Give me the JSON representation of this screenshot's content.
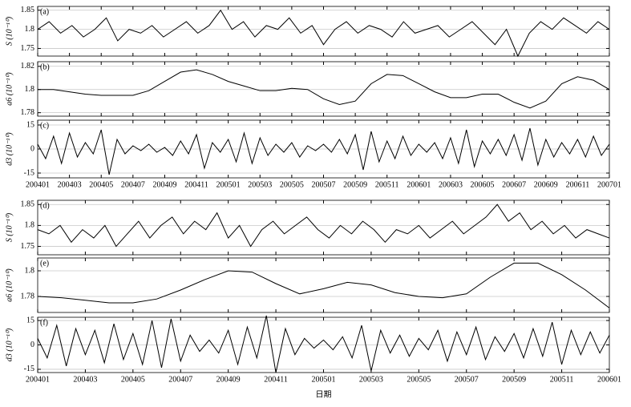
{
  "chart_data": [
    {
      "type": "line",
      "title": "(a)",
      "ylabel": "S (10⁻¹⁰)",
      "color": "#000000",
      "grid": true,
      "ylim": [
        1.73,
        1.86
      ],
      "yticks": [
        1.75,
        1.8,
        1.85
      ],
      "values": [
        1.8,
        1.82,
        1.79,
        1.81,
        1.78,
        1.8,
        1.83,
        1.77,
        1.8,
        1.79,
        1.81,
        1.78,
        1.8,
        1.82,
        1.79,
        1.81,
        1.85,
        1.8,
        1.82,
        1.78,
        1.81,
        1.8,
        1.83,
        1.79,
        1.81,
        1.76,
        1.8,
        1.82,
        1.79,
        1.81,
        1.8,
        1.78,
        1.82,
        1.79,
        1.8,
        1.81,
        1.78,
        1.8,
        1.82,
        1.79,
        1.76,
        1.8,
        1.73,
        1.79,
        1.82,
        1.8,
        1.83,
        1.81,
        1.79,
        1.82,
        1.8
      ]
    },
    {
      "type": "line",
      "title": "(b)",
      "ylabel": "a6 (10⁻¹⁰)",
      "color": "#000000",
      "grid": true,
      "ylim": [
        1.777,
        1.824
      ],
      "yticks": [
        1.78,
        1.8,
        1.82
      ],
      "values": [
        1.8,
        1.8,
        1.798,
        1.796,
        1.795,
        1.795,
        1.795,
        1.799,
        1.807,
        1.815,
        1.817,
        1.813,
        1.807,
        1.803,
        1.799,
        1.799,
        1.801,
        1.8,
        1.792,
        1.787,
        1.79,
        1.805,
        1.813,
        1.812,
        1.805,
        1.798,
        1.793,
        1.793,
        1.796,
        1.796,
        1.789,
        1.784,
        1.79,
        1.805,
        1.811,
        1.808,
        1.8
      ]
    },
    {
      "type": "line",
      "title": "(c)",
      "ylabel": "d3 (10⁻¹⁰)",
      "color": "#000000",
      "grid": true,
      "ylim": [
        -18,
        18
      ],
      "yticks": [
        -15,
        0,
        15
      ],
      "xticks": [
        "200401",
        "200403",
        "200405",
        "200407",
        "200409",
        "200411",
        "200501",
        "200503",
        "200505",
        "200507",
        "200509",
        "200511",
        "200601",
        "200603",
        "200605",
        "200607",
        "200609",
        "200611",
        "200701"
      ],
      "values": [
        3,
        -6,
        8,
        -9,
        10,
        -5,
        4,
        -3,
        12,
        -16,
        6,
        -3,
        2,
        -1,
        3,
        -2,
        1,
        -4,
        5,
        -3,
        9,
        -12,
        4,
        -2,
        6,
        -8,
        10,
        -9,
        7,
        -4,
        3,
        -2,
        4,
        -5,
        2,
        -1,
        3,
        -2,
        6,
        -3,
        9,
        -13,
        11,
        -8,
        5,
        -6,
        8,
        -4,
        3,
        -2,
        4,
        -6,
        7,
        -9,
        12,
        -11,
        5,
        -3,
        6,
        -4,
        9,
        -7,
        13,
        -10,
        6,
        -5,
        4,
        -3,
        6,
        -5,
        8,
        -4,
        3
      ]
    },
    {
      "type": "line",
      "title": "(d)",
      "ylabel": "S (10⁻¹⁰)",
      "color": "#000000",
      "grid": true,
      "ylim": [
        1.73,
        1.86
      ],
      "yticks": [
        1.75,
        1.8,
        1.85
      ],
      "values": [
        1.79,
        1.78,
        1.8,
        1.76,
        1.79,
        1.77,
        1.8,
        1.75,
        1.78,
        1.81,
        1.77,
        1.8,
        1.82,
        1.78,
        1.81,
        1.79,
        1.83,
        1.77,
        1.8,
        1.75,
        1.79,
        1.81,
        1.78,
        1.8,
        1.82,
        1.79,
        1.77,
        1.8,
        1.78,
        1.81,
        1.79,
        1.76,
        1.79,
        1.78,
        1.8,
        1.77,
        1.79,
        1.81,
        1.78,
        1.8,
        1.82,
        1.85,
        1.81,
        1.83,
        1.79,
        1.81,
        1.78,
        1.8,
        1.77,
        1.79,
        1.78,
        1.77
      ]
    },
    {
      "type": "line",
      "title": "(e)",
      "ylabel": "a6 (10⁻¹⁰)",
      "color": "#000000",
      "grid": true,
      "ylim": [
        1.7675,
        1.81
      ],
      "yticks": [
        1.78,
        1.8
      ],
      "values": [
        1.78,
        1.779,
        1.777,
        1.775,
        1.775,
        1.778,
        1.785,
        1.793,
        1.8,
        1.799,
        1.79,
        1.782,
        1.786,
        1.791,
        1.789,
        1.783,
        1.78,
        1.779,
        1.782,
        1.795,
        1.806,
        1.806,
        1.797,
        1.785,
        1.771
      ]
    },
    {
      "type": "line",
      "title": "(f)",
      "ylabel": "d3 (10⁻¹⁰)",
      "xlabel": "日期",
      "color": "#000000",
      "grid": true,
      "ylim": [
        -17,
        17
      ],
      "yticks": [
        -15,
        0,
        15
      ],
      "xticks": [
        "200401",
        "200403",
        "200405",
        "200407",
        "200409",
        "200411",
        "200501",
        "200503",
        "200505",
        "200507",
        "200509",
        "200511",
        "200601"
      ],
      "values": [
        4,
        -8,
        12,
        -13,
        10,
        -6,
        9,
        -11,
        13,
        -9,
        7,
        -12,
        15,
        -14,
        16,
        -10,
        6,
        -4,
        3,
        -5,
        9,
        -12,
        11,
        -8,
        18,
        -17,
        10,
        -6,
        4,
        -2,
        3,
        -3,
        5,
        -8,
        12,
        -16,
        9,
        -5,
        6,
        -7,
        4,
        -3,
        9,
        -10,
        8,
        -6,
        11,
        -9,
        5,
        -4,
        7,
        -8,
        10,
        -7,
        14,
        -12,
        9,
        -6,
        8,
        -5,
        6
      ]
    }
  ]
}
